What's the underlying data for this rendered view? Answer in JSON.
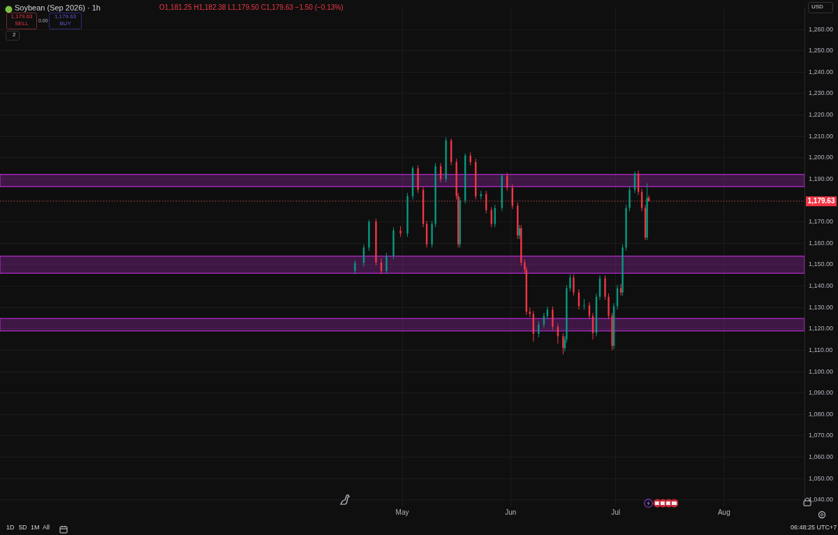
{
  "chart_data": {
    "type": "candlestick",
    "title": "Soybean (Sep 2026) · 1h",
    "annotations": [
      "O1,181.25 H1,182.38 L1,179.50 C1,179.63 −1.50 (−0.13%)",
      "1,179.63",
      "SELL",
      "0.00",
      "1,179.63",
      "BUY",
      "2",
      "USD",
      "1D",
      "5D",
      "1M",
      "All",
      "06:48:25 UTC+7"
    ],
    "x": [
      "--04-17T12:00",
      "--04-20T00:00",
      "--04-21T12:00",
      "--04-23T12:00",
      "--04-25T00:00",
      "--04-26T12:00",
      "--04-28T12:00",
      "--04-30T12:00",
      "--05-02T12:00",
      "--05-04T00:00",
      "--05-05T12:00",
      "--05-07T00:00",
      "--05-08T00:00",
      "--05-09T12:00",
      "--05-10T12:00",
      "--05-12T00:00",
      "--05-13T12:00",
      "--05-15T00:00",
      "--05-16T12:00",
      "--05-17T00:00",
      "--05-17T12:00",
      "--05-19T00:00",
      "--05-20T12:00",
      "--05-22T00:00",
      "--05-23T12:00",
      "--05-25T00:00",
      "--05-26T12:00",
      "--05-27T12:00",
      "--05-29T12:00",
      "--05-31T00:00",
      "--06-01T12:00",
      "--06-03T00:00",
      "--06-03T12:00",
      "--06-04T00:00",
      "--06-05T00:00",
      "--06-05T12:00",
      "--06-06T12:00",
      "--06-07T12:00",
      "--06-09T00:00",
      "--06-10T12:00",
      "--06-11T12:00",
      "--06-13T00:00",
      "--06-14T12:00",
      "--06-16T00:00",
      "--06-16T12:00",
      "--06-17T00:00",
      "--06-18T00:00",
      "--06-19T00:00",
      "--06-20T12:00",
      "--06-22T00:00",
      "--06-23T12:00",
      "--06-24T12:00",
      "--06-25T12:00",
      "--06-26T12:00",
      "--06-28T00:00",
      "--06-29T00:00",
      "--06-30T00:00",
      "--06-30T12:00",
      "--07-01T12:00",
      "--07-02T12:00",
      "--07-03T00:00",
      "--07-04T00:00",
      "--07-05T00:00",
      "--07-06T12:00",
      "--07-07T12:00",
      "--07-08T12:00",
      "--07-09T12:00",
      "--07-10T00:00",
      "--07-10T12:00"
    ],
    "ohlc": [
      [
        1147,
        1152,
        1145.5,
        1150.8
      ],
      [
        1150.8,
        1159.5,
        1149,
        1158
      ],
      [
        1158,
        1171,
        1156.5,
        1170
      ],
      [
        1170,
        1171.5,
        1149.5,
        1151
      ],
      [
        1151,
        1153,
        1145.5,
        1147
      ],
      [
        1147,
        1155.5,
        1146,
        1154
      ],
      [
        1154,
        1167.5,
        1152.5,
        1166
      ],
      [
        1166,
        1168,
        1163,
        1164.6
      ],
      [
        1164.6,
        1183.5,
        1163,
        1182
      ],
      [
        1182,
        1196,
        1180.5,
        1195
      ],
      [
        1195,
        1196.5,
        1183.5,
        1185
      ],
      [
        1185,
        1186.5,
        1167.5,
        1169
      ],
      [
        1169,
        1170.5,
        1158,
        1159.5
      ],
      [
        1159.5,
        1170.5,
        1158,
        1169
      ],
      [
        1169,
        1197.5,
        1167.5,
        1196
      ],
      [
        1196,
        1197.5,
        1188.5,
        1190
      ],
      [
        1190,
        1209.5,
        1188.5,
        1208
      ],
      [
        1208,
        1209,
        1196.5,
        1198
      ],
      [
        1198,
        1199.5,
        1180.5,
        1182
      ],
      [
        1182,
        1183.5,
        1158,
        1159.5
      ],
      [
        1159.5,
        1181.5,
        1158,
        1180
      ],
      [
        1180,
        1202,
        1178.5,
        1201
      ],
      [
        1201,
        1202.5,
        1196.5,
        1198
      ],
      [
        1198,
        1199.5,
        1180.5,
        1182
      ],
      [
        1182,
        1184.5,
        1180.5,
        1183
      ],
      [
        1183,
        1184.5,
        1174,
        1175.5
      ],
      [
        1175.5,
        1177,
        1167.5,
        1169
      ],
      [
        1169,
        1178,
        1167.5,
        1176.5
      ],
      [
        1176.5,
        1192.5,
        1175,
        1191.6
      ],
      [
        1191.6,
        1193,
        1184.5,
        1186
      ],
      [
        1186,
        1187.5,
        1176,
        1177.5
      ],
      [
        1177.5,
        1179,
        1162,
        1163.7
      ],
      [
        1163.7,
        1168.5,
        1162,
        1167
      ],
      [
        1167,
        1168.5,
        1149.5,
        1151
      ],
      [
        1151,
        1152.5,
        1146,
        1147.6
      ],
      [
        1147.6,
        1149,
        1126.5,
        1128
      ],
      [
        1128,
        1130,
        1125.5,
        1127
      ],
      [
        1127,
        1128.5,
        1114,
        1117.7
      ],
      [
        1117.7,
        1123.5,
        1116,
        1122
      ],
      [
        1122,
        1127.5,
        1120.5,
        1126
      ],
      [
        1126,
        1130.5,
        1124.5,
        1129
      ],
      [
        1129,
        1130.5,
        1119.5,
        1121
      ],
      [
        1121,
        1122.5,
        1113,
        1116.5
      ],
      [
        1116.5,
        1118,
        1108,
        1111
      ],
      [
        1111,
        1116.5,
        1109.5,
        1115
      ],
      [
        1115,
        1140.5,
        1113.5,
        1139
      ],
      [
        1139,
        1145.5,
        1137.5,
        1144
      ],
      [
        1144,
        1145.5,
        1135.5,
        1137
      ],
      [
        1137,
        1138.5,
        1129,
        1130.6
      ],
      [
        1130.6,
        1134,
        1129,
        1131
      ],
      [
        1131,
        1132.5,
        1124.5,
        1126
      ],
      [
        1126,
        1127.5,
        1115,
        1118
      ],
      [
        1118,
        1136.5,
        1116.5,
        1135
      ],
      [
        1135,
        1145,
        1133.5,
        1143.6
      ],
      [
        1143.6,
        1145,
        1133.5,
        1135
      ],
      [
        1135,
        1136.5,
        1124.5,
        1126
      ],
      [
        1126,
        1127.5,
        1110,
        1112
      ],
      [
        1112,
        1132,
        1110.5,
        1130.6
      ],
      [
        1130.6,
        1140.5,
        1129,
        1139
      ],
      [
        1139,
        1141,
        1135.5,
        1137
      ],
      [
        1137,
        1159.5,
        1135.5,
        1158
      ],
      [
        1158,
        1178,
        1156.5,
        1176.5
      ],
      [
        1176.5,
        1186.5,
        1175,
        1185
      ],
      [
        1185,
        1193.5,
        1183.5,
        1192.6
      ],
      [
        1192.6,
        1194,
        1182.5,
        1184
      ],
      [
        1184,
        1185.5,
        1175,
        1176.5
      ],
      [
        1176.5,
        1178,
        1161.5,
        1162.7
      ],
      [
        1162.7,
        1188,
        1161.5,
        1181.25
      ],
      [
        1181.25,
        1182.38,
        1179.5,
        1179.63
      ]
    ],
    "colors": [
      "#089981",
      "#089981",
      "#089981",
      "#f23645",
      "#f23645",
      "#089981",
      "#089981",
      "#f23645",
      "#089981",
      "#089981",
      "#f23645",
      "#f23645",
      "#f23645",
      "#089981",
      "#089981",
      "#f23645",
      "#089981",
      "#f23645",
      "#f23645",
      "#f23645",
      "#089981",
      "#089981",
      "#f23645",
      "#f23645",
      "#089981",
      "#f23645",
      "#f23645",
      "#089981",
      "#089981",
      "#f23645",
      "#f23645",
      "#f23645",
      "#089981",
      "#f23645",
      "#f23645",
      "#f23645",
      "#f23645",
      "#f23645",
      "#089981",
      "#089981",
      "#089981",
      "#f23645",
      "#f23645",
      "#f23645",
      "#089981",
      "#089981",
      "#089981",
      "#f23645",
      "#f23645",
      "#089981",
      "#f23645",
      "#f23645",
      "#089981",
      "#089981",
      "#f23645",
      "#f23645",
      "#f23645",
      "#089981",
      "#089981",
      "#f23645",
      "#089981",
      "#089981",
      "#089981",
      "#089981",
      "#f23645",
      "#f23645",
      "#f23645",
      "#089981",
      "#f23645"
    ],
    "xlim": [
      "--01-06",
      "--08-24"
    ],
    "xticks": [
      {
        "value": "--05-01",
        "label": "May"
      },
      {
        "value": "--06-01",
        "label": "Jun"
      },
      {
        "value": "--07-01",
        "label": "Jul"
      },
      {
        "value": "--08-01",
        "label": "Aug"
      }
    ],
    "ylim": [
      1037,
      1270
    ],
    "yticks": [
      {
        "value": 1040,
        "label": "1,040.00"
      },
      {
        "value": 1050,
        "label": "1,050.00"
      },
      {
        "value": 1060,
        "label": "1,060.00"
      },
      {
        "value": 1070,
        "label": "1,070.00"
      },
      {
        "value": 1080,
        "label": "1,080.00"
      },
      {
        "value": 1090,
        "label": "1,090.00"
      },
      {
        "value": 1100,
        "label": "1,100.00"
      },
      {
        "value": 1110,
        "label": "1,110.00"
      },
      {
        "value": 1120,
        "label": "1,120.00"
      },
      {
        "value": 1130,
        "label": "1,130.00"
      },
      {
        "value": 1140,
        "label": "1,140.00"
      },
      {
        "value": 1150,
        "label": "1,150.00"
      },
      {
        "value": 1160,
        "label": "1,160.00"
      },
      {
        "value": 1170,
        "label": "1,170.00"
      },
      {
        "value": 1180,
        "label": null
      },
      {
        "value": 1190,
        "label": "1,190.00"
      },
      {
        "value": 1200,
        "label": "1,200.00"
      },
      {
        "value": 1210,
        "label": "1,210.00"
      },
      {
        "value": 1220,
        "label": "1,220.00"
      },
      {
        "value": 1230,
        "label": "1,230.00"
      },
      {
        "value": 1240,
        "label": "1,240.00"
      },
      {
        "value": 1250,
        "label": "1,250.00"
      },
      {
        "value": 1260,
        "label": "1,260.00"
      }
    ],
    "ref_lines": [
      {
        "axis": "y",
        "value": 1179.63,
        "label": "1,179.63",
        "color": "#f23645",
        "line_style": "dotted"
      }
    ],
    "bands": [
      {
        "axis": "y",
        "from": 1186.5,
        "to": 1192.2,
        "color": "#9c27b0"
      },
      {
        "axis": "y",
        "from": 1146,
        "to": 1154,
        "color": "#9c27b0"
      },
      {
        "axis": "y",
        "from": 1119,
        "to": 1124.8,
        "color": "#9c27b0"
      }
    ],
    "grid": true
  }
}
